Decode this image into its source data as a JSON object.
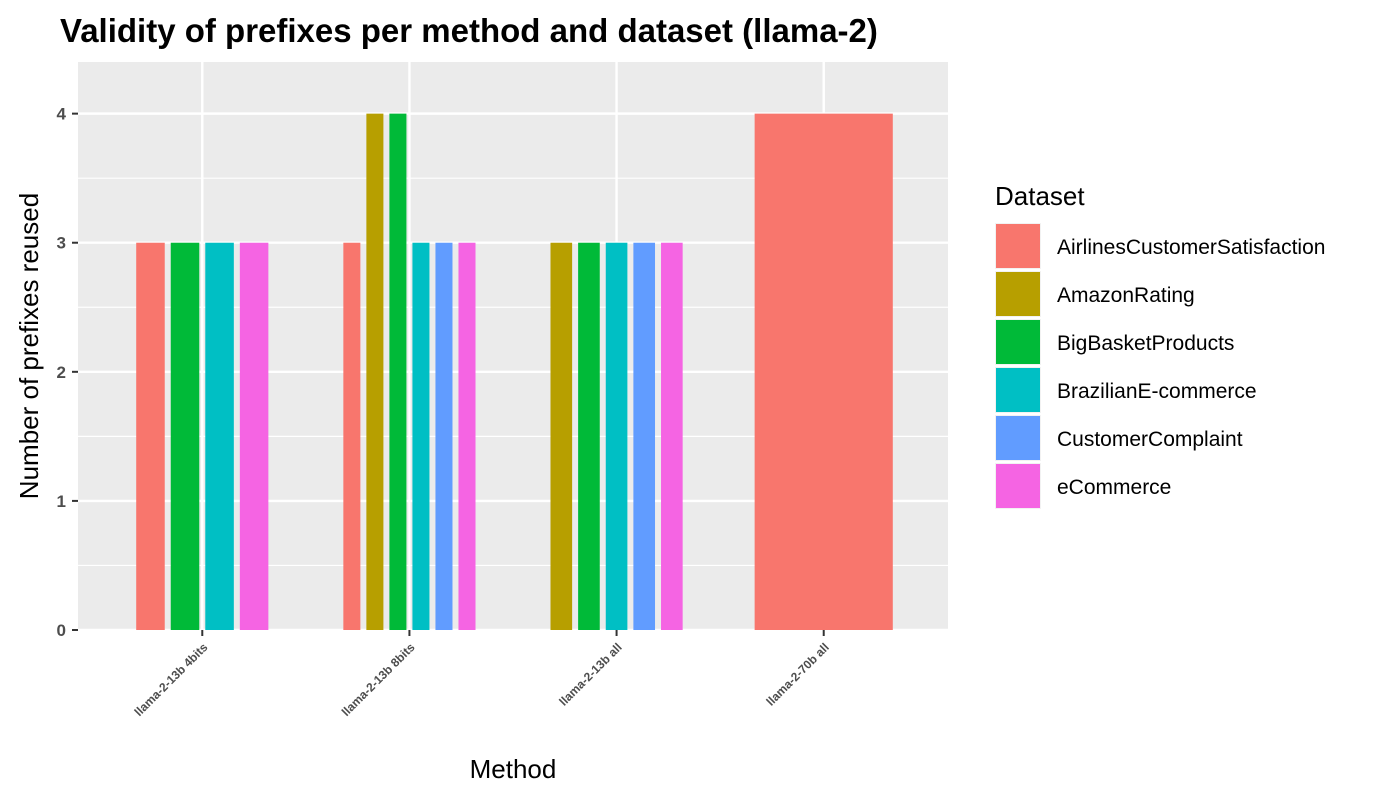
{
  "chart_data": {
    "type": "bar",
    "title": "Validity of prefixes per method and dataset (llama-2)",
    "xlabel": "Method",
    "ylabel": "Number of prefixes reused",
    "categories": [
      "llama-2-13b 4bits",
      "llama-2-13b 8bits",
      "llama-2-13b all",
      "llama-2-70b all"
    ],
    "yticks": [
      0,
      1,
      2,
      3,
      4
    ],
    "ylim": [
      0,
      4.4
    ],
    "grid": true,
    "legend": {
      "title": "Dataset",
      "position": "right"
    },
    "series": [
      {
        "name": "AirlinesCustomerSatisfaction",
        "color": "#F8766D",
        "values": [
          3,
          3,
          null,
          4
        ]
      },
      {
        "name": "AmazonRating",
        "color": "#B79F00",
        "values": [
          null,
          4,
          3,
          null
        ]
      },
      {
        "name": "BigBasketProducts",
        "color": "#00BA38",
        "values": [
          3,
          4,
          3,
          null
        ]
      },
      {
        "name": "BrazilianE-commerce",
        "color": "#00BFC4",
        "values": [
          3,
          3,
          3,
          null
        ]
      },
      {
        "name": "CustomerComplaint",
        "color": "#619CFF",
        "values": [
          null,
          3,
          3,
          null
        ]
      },
      {
        "name": "eCommerce",
        "color": "#F564E3",
        "values": [
          3,
          3,
          3,
          null
        ]
      }
    ]
  }
}
